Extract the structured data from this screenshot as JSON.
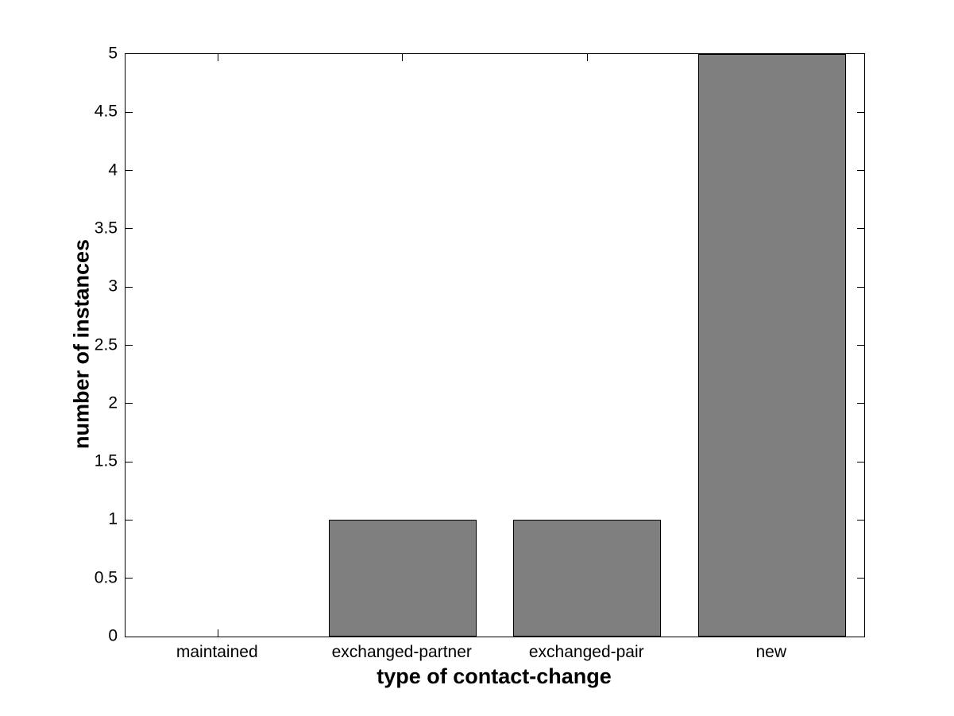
{
  "chart_data": {
    "type": "bar",
    "title": "",
    "xlabel": "type of contact-change",
    "ylabel": "number of instances",
    "categories": [
      "maintained",
      "exchanged-partner",
      "exchanged-pair",
      "new"
    ],
    "values": [
      0,
      1,
      1,
      5
    ],
    "ylim": [
      0,
      5
    ],
    "ytick_step": 0.5,
    "ytick_labels": [
      "0",
      "0.5",
      "1",
      "1.5",
      "2",
      "2.5",
      "3",
      "3.5",
      "4",
      "4.5",
      "5"
    ],
    "grid": "off",
    "legend": "none",
    "box": "on",
    "tick_direction": "in",
    "bar_width_fraction": 0.8,
    "colors": {
      "bar_fill": "#7f7f7f",
      "bar_edge": "#000000",
      "axis": "#000000",
      "text": "#000000",
      "background": "#ffffff"
    }
  }
}
